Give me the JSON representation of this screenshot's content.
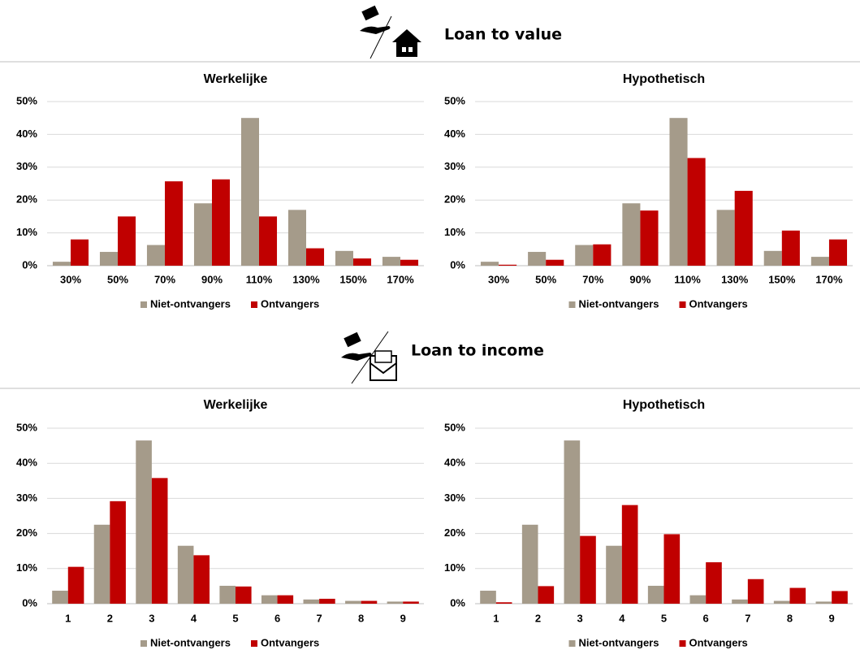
{
  "sections": [
    "Loan to value",
    "Loan to income"
  ],
  "chart_data": [
    {
      "type": "bar",
      "title": "Werkelijke",
      "categories": [
        "30%",
        "50%",
        "70%",
        "90%",
        "110%",
        "130%",
        "150%",
        "170%"
      ],
      "series": [
        {
          "name": "Niet-ontvangers",
          "color": "#a59b8a",
          "values": [
            1.2,
            4.2,
            6.3,
            19,
            45,
            17,
            4.5,
            2.7
          ]
        },
        {
          "name": "Ontvangers",
          "color": "#c00000",
          "values": [
            8,
            15,
            25.7,
            26.3,
            15,
            5.3,
            2.2,
            1.8
          ]
        }
      ],
      "ylim": [
        0,
        50
      ],
      "yticks": [
        {
          "value": 0,
          "label": "0%"
        },
        {
          "value": 10,
          "label": "10%"
        },
        {
          "value": 20,
          "label": "20%"
        },
        {
          "value": 30,
          "label": "30%"
        },
        {
          "value": 40,
          "label": "40%"
        },
        {
          "value": 50,
          "label": "50%"
        }
      ],
      "grid": true,
      "legend": "bottom"
    },
    {
      "type": "bar",
      "title": "Hypothetisch",
      "categories": [
        "30%",
        "50%",
        "70%",
        "90%",
        "110%",
        "130%",
        "150%",
        "170%"
      ],
      "series": [
        {
          "name": "Niet-ontvangers",
          "color": "#a59b8a",
          "values": [
            1.2,
            4.2,
            6.3,
            19,
            45,
            17,
            4.5,
            2.7
          ]
        },
        {
          "name": "Ontvangers",
          "color": "#c00000",
          "values": [
            0.3,
            1.8,
            6.5,
            16.8,
            32.8,
            22.8,
            10.7,
            8
          ]
        }
      ],
      "ylim": [
        0,
        50
      ],
      "yticks": [
        {
          "value": 0,
          "label": "0%"
        },
        {
          "value": 10,
          "label": "10%"
        },
        {
          "value": 20,
          "label": "20%"
        },
        {
          "value": 30,
          "label": "30%"
        },
        {
          "value": 40,
          "label": "40%"
        },
        {
          "value": 50,
          "label": "50%"
        }
      ],
      "grid": true,
      "legend": "bottom"
    },
    {
      "type": "bar",
      "title": "Werkelijke",
      "categories": [
        "1",
        "2",
        "3",
        "4",
        "5",
        "6",
        "7",
        "8",
        "9"
      ],
      "series": [
        {
          "name": "Niet-ontvangers",
          "color": "#a59b8a",
          "values": [
            3.7,
            22.5,
            46.5,
            16.5,
            5.1,
            2.4,
            1.2,
            0.8,
            0.6
          ]
        },
        {
          "name": "Ontvangers",
          "color": "#c00000",
          "values": [
            10.5,
            29.2,
            35.8,
            13.8,
            4.9,
            2.4,
            1.4,
            0.8,
            0.6
          ]
        }
      ],
      "ylim": [
        0,
        50
      ],
      "yticks": [
        {
          "value": 0,
          "label": "0%"
        },
        {
          "value": 10,
          "label": "10%"
        },
        {
          "value": 20,
          "label": "20%"
        },
        {
          "value": 30,
          "label": "30%"
        },
        {
          "value": 40,
          "label": "40%"
        },
        {
          "value": 50,
          "label": "50%"
        }
      ],
      "grid": true,
      "legend": "bottom"
    },
    {
      "type": "bar",
      "title": "Hypothetisch",
      "categories": [
        "1",
        "2",
        "3",
        "4",
        "5",
        "6",
        "7",
        "8",
        "9"
      ],
      "series": [
        {
          "name": "Niet-ontvangers",
          "color": "#a59b8a",
          "values": [
            3.7,
            22.5,
            46.5,
            16.5,
            5.1,
            2.4,
            1.2,
            0.8,
            0.6
          ]
        },
        {
          "name": "Ontvangers",
          "color": "#c00000",
          "values": [
            0.4,
            5,
            19.3,
            28.1,
            19.8,
            11.8,
            7,
            4.5,
            3.6
          ]
        }
      ],
      "ylim": [
        0,
        50
      ],
      "yticks": [
        {
          "value": 0,
          "label": "0%"
        },
        {
          "value": 10,
          "label": "10%"
        },
        {
          "value": 20,
          "label": "20%"
        },
        {
          "value": 30,
          "label": "30%"
        },
        {
          "value": 40,
          "label": "40%"
        },
        {
          "value": 50,
          "label": "50%"
        }
      ],
      "grid": true,
      "legend": "bottom"
    }
  ]
}
